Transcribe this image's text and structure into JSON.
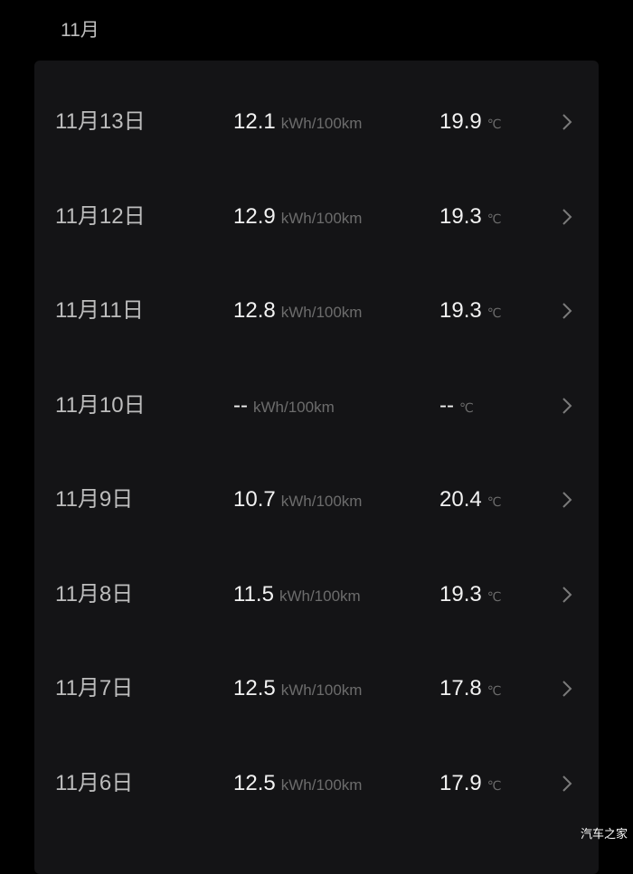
{
  "month_header": "11月",
  "units": {
    "efficiency": "kWh/100km",
    "temperature": "℃"
  },
  "rows": [
    {
      "date": "11月13日",
      "efficiency": "12.1",
      "temperature": "19.9"
    },
    {
      "date": "11月12日",
      "efficiency": "12.9",
      "temperature": "19.3"
    },
    {
      "date": "11月11日",
      "efficiency": "12.8",
      "temperature": "19.3"
    },
    {
      "date": "11月10日",
      "efficiency": "--",
      "temperature": "--"
    },
    {
      "date": "11月9日",
      "efficiency": "10.7",
      "temperature": "20.4"
    },
    {
      "date": "11月8日",
      "efficiency": "11.5",
      "temperature": "19.3"
    },
    {
      "date": "11月7日",
      "efficiency": "12.5",
      "temperature": "17.8"
    },
    {
      "date": "11月6日",
      "efficiency": "12.5",
      "temperature": "17.9"
    }
  ],
  "watermark": "汽车之家"
}
